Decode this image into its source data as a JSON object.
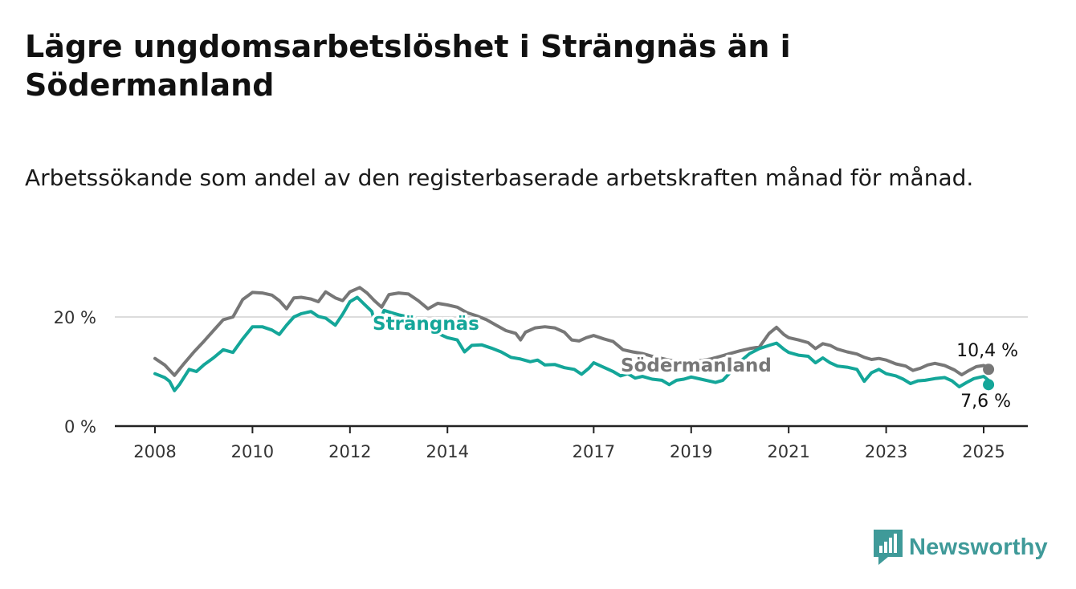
{
  "title": "Lägre ungdomsarbetslöshet i Strängnäs än i Södermanland",
  "subtitle": "Arbetssökande som andel av den registerbaserade arbetskraften månad för månad.",
  "brand": {
    "name": "Newsworthy",
    "icon": "newsworthy-chart-bubble-icon",
    "color": "#3f9a99"
  },
  "chart_data": {
    "type": "line",
    "x_unit": "year",
    "xlim": [
      2007.7,
      2025.9
    ],
    "ylim": [
      0,
      27
    ],
    "y_ticks": [
      {
        "value": 0,
        "label": "0 %"
      },
      {
        "value": 20,
        "label": "20 %"
      }
    ],
    "x_ticks": [
      {
        "value": 2008,
        "label": "2008"
      },
      {
        "value": 2010,
        "label": "2010"
      },
      {
        "value": 2012,
        "label": "2012"
      },
      {
        "value": 2014,
        "label": "2014"
      },
      {
        "value": 2017,
        "label": "2017"
      },
      {
        "value": 2019,
        "label": "2019"
      },
      {
        "value": 2021,
        "label": "2021"
      },
      {
        "value": 2023,
        "label": "2023"
      },
      {
        "value": 2025,
        "label": "2025"
      }
    ],
    "grid": "horizontal",
    "legend": "inline labels",
    "series": [
      {
        "name": "Södermanland",
        "color": "#777777",
        "end_label": "10,4 %",
        "points": [
          [
            2008.0,
            12.4
          ],
          [
            2008.2,
            11.2
          ],
          [
            2008.4,
            9.3
          ],
          [
            2008.6,
            11.5
          ],
          [
            2008.8,
            13.6
          ],
          [
            2009.0,
            15.5
          ],
          [
            2009.2,
            17.5
          ],
          [
            2009.4,
            19.5
          ],
          [
            2009.6,
            20.0
          ],
          [
            2009.8,
            23.2
          ],
          [
            2010.0,
            24.5
          ],
          [
            2010.2,
            24.4
          ],
          [
            2010.4,
            24.0
          ],
          [
            2010.55,
            23.0
          ],
          [
            2010.7,
            21.5
          ],
          [
            2010.85,
            23.5
          ],
          [
            2011.0,
            23.6
          ],
          [
            2011.2,
            23.3
          ],
          [
            2011.35,
            22.8
          ],
          [
            2011.5,
            24.6
          ],
          [
            2011.7,
            23.5
          ],
          [
            2011.85,
            23.0
          ],
          [
            2012.0,
            24.6
          ],
          [
            2012.2,
            25.4
          ],
          [
            2012.35,
            24.4
          ],
          [
            2012.5,
            23.0
          ],
          [
            2012.65,
            21.8
          ],
          [
            2012.8,
            24.1
          ],
          [
            2013.0,
            24.4
          ],
          [
            2013.2,
            24.2
          ],
          [
            2013.4,
            23.0
          ],
          [
            2013.6,
            21.5
          ],
          [
            2013.8,
            22.5
          ],
          [
            2014.0,
            22.2
          ],
          [
            2014.2,
            21.8
          ],
          [
            2014.4,
            20.8
          ],
          [
            2014.6,
            20.2
          ],
          [
            2014.8,
            19.5
          ],
          [
            2015.0,
            18.5
          ],
          [
            2015.2,
            17.5
          ],
          [
            2015.4,
            17.0
          ],
          [
            2015.5,
            15.8
          ],
          [
            2015.6,
            17.2
          ],
          [
            2015.8,
            18.0
          ],
          [
            2016.0,
            18.2
          ],
          [
            2016.2,
            18.0
          ],
          [
            2016.4,
            17.2
          ],
          [
            2016.55,
            15.8
          ],
          [
            2016.7,
            15.6
          ],
          [
            2016.85,
            16.2
          ],
          [
            2017.0,
            16.6
          ],
          [
            2017.2,
            16.0
          ],
          [
            2017.4,
            15.5
          ],
          [
            2017.6,
            14.0
          ],
          [
            2017.8,
            13.6
          ],
          [
            2018.0,
            13.3
          ],
          [
            2018.2,
            12.8
          ],
          [
            2018.4,
            12.4
          ],
          [
            2018.6,
            12.0
          ],
          [
            2018.8,
            12.0
          ],
          [
            2019.0,
            11.8
          ],
          [
            2019.2,
            12.0
          ],
          [
            2019.4,
            12.3
          ],
          [
            2019.6,
            12.8
          ],
          [
            2019.8,
            13.3
          ],
          [
            2020.0,
            13.8
          ],
          [
            2020.2,
            14.2
          ],
          [
            2020.4,
            14.5
          ],
          [
            2020.6,
            17.0
          ],
          [
            2020.75,
            18.1
          ],
          [
            2020.9,
            16.8
          ],
          [
            2021.0,
            16.2
          ],
          [
            2021.2,
            15.8
          ],
          [
            2021.4,
            15.3
          ],
          [
            2021.55,
            14.2
          ],
          [
            2021.7,
            15.1
          ],
          [
            2021.85,
            14.8
          ],
          [
            2022.0,
            14.1
          ],
          [
            2022.2,
            13.6
          ],
          [
            2022.4,
            13.2
          ],
          [
            2022.55,
            12.6
          ],
          [
            2022.7,
            12.2
          ],
          [
            2022.85,
            12.4
          ],
          [
            2023.0,
            12.1
          ],
          [
            2023.2,
            11.4
          ],
          [
            2023.4,
            11.0
          ],
          [
            2023.55,
            10.2
          ],
          [
            2023.7,
            10.6
          ],
          [
            2023.85,
            11.2
          ],
          [
            2024.0,
            11.5
          ],
          [
            2024.2,
            11.1
          ],
          [
            2024.4,
            10.3
          ],
          [
            2024.55,
            9.4
          ],
          [
            2024.7,
            10.2
          ],
          [
            2024.85,
            10.9
          ],
          [
            2025.0,
            11.1
          ],
          [
            2025.1,
            10.7
          ],
          [
            2025.1,
            10.4
          ]
        ]
      },
      {
        "name": "Strängnäs",
        "color": "#14a699",
        "end_label": "7,6 %",
        "points": [
          [
            2008.0,
            9.6
          ],
          [
            2008.2,
            8.9
          ],
          [
            2008.3,
            8.2
          ],
          [
            2008.4,
            6.5
          ],
          [
            2008.5,
            7.6
          ],
          [
            2008.7,
            10.4
          ],
          [
            2008.85,
            10.0
          ],
          [
            2009.0,
            11.2
          ],
          [
            2009.2,
            12.5
          ],
          [
            2009.4,
            14.0
          ],
          [
            2009.6,
            13.5
          ],
          [
            2009.8,
            16.0
          ],
          [
            2010.0,
            18.2
          ],
          [
            2010.2,
            18.2
          ],
          [
            2010.4,
            17.6
          ],
          [
            2010.55,
            16.8
          ],
          [
            2010.7,
            18.5
          ],
          [
            2010.85,
            20.0
          ],
          [
            2011.0,
            20.6
          ],
          [
            2011.2,
            21.0
          ],
          [
            2011.35,
            20.1
          ],
          [
            2011.5,
            19.8
          ],
          [
            2011.7,
            18.5
          ],
          [
            2011.85,
            20.5
          ],
          [
            2012.0,
            22.8
          ],
          [
            2012.15,
            23.6
          ],
          [
            2012.3,
            22.3
          ],
          [
            2012.45,
            21.0
          ],
          [
            2012.55,
            17.6
          ],
          [
            2012.7,
            21.2
          ],
          [
            2012.85,
            20.8
          ],
          [
            2013.0,
            20.4
          ],
          [
            2013.2,
            20.0
          ],
          [
            2013.4,
            19.5
          ],
          [
            2013.6,
            18.3
          ],
          [
            2013.8,
            17.0
          ],
          [
            2014.0,
            16.2
          ],
          [
            2014.2,
            15.8
          ],
          [
            2014.35,
            13.6
          ],
          [
            2014.5,
            14.8
          ],
          [
            2014.7,
            14.9
          ],
          [
            2014.9,
            14.3
          ],
          [
            2015.1,
            13.6
          ],
          [
            2015.3,
            12.6
          ],
          [
            2015.5,
            12.3
          ],
          [
            2015.7,
            11.8
          ],
          [
            2015.85,
            12.1
          ],
          [
            2016.0,
            11.2
          ],
          [
            2016.2,
            11.3
          ],
          [
            2016.4,
            10.7
          ],
          [
            2016.6,
            10.4
          ],
          [
            2016.75,
            9.5
          ],
          [
            2016.9,
            10.6
          ],
          [
            2017.0,
            11.6
          ],
          [
            2017.2,
            10.8
          ],
          [
            2017.4,
            10.0
          ],
          [
            2017.55,
            9.2
          ],
          [
            2017.7,
            9.6
          ],
          [
            2017.85,
            8.8
          ],
          [
            2018.0,
            9.1
          ],
          [
            2018.2,
            8.6
          ],
          [
            2018.4,
            8.4
          ],
          [
            2018.55,
            7.6
          ],
          [
            2018.7,
            8.4
          ],
          [
            2018.85,
            8.6
          ],
          [
            2019.0,
            9.0
          ],
          [
            2019.2,
            8.6
          ],
          [
            2019.35,
            8.3
          ],
          [
            2019.5,
            8.0
          ],
          [
            2019.65,
            8.4
          ],
          [
            2019.8,
            9.8
          ],
          [
            2020.0,
            11.8
          ],
          [
            2020.2,
            13.3
          ],
          [
            2020.4,
            14.2
          ],
          [
            2020.6,
            14.8
          ],
          [
            2020.75,
            15.2
          ],
          [
            2020.9,
            14.1
          ],
          [
            2021.0,
            13.5
          ],
          [
            2021.2,
            13.0
          ],
          [
            2021.4,
            12.8
          ],
          [
            2021.55,
            11.6
          ],
          [
            2021.7,
            12.5
          ],
          [
            2021.85,
            11.6
          ],
          [
            2022.0,
            11.0
          ],
          [
            2022.2,
            10.8
          ],
          [
            2022.4,
            10.4
          ],
          [
            2022.55,
            8.2
          ],
          [
            2022.7,
            9.8
          ],
          [
            2022.85,
            10.4
          ],
          [
            2023.0,
            9.6
          ],
          [
            2023.2,
            9.2
          ],
          [
            2023.35,
            8.6
          ],
          [
            2023.5,
            7.8
          ],
          [
            2023.65,
            8.3
          ],
          [
            2023.8,
            8.4
          ],
          [
            2024.0,
            8.7
          ],
          [
            2024.2,
            8.9
          ],
          [
            2024.35,
            8.3
          ],
          [
            2024.5,
            7.2
          ],
          [
            2024.65,
            8.0
          ],
          [
            2024.8,
            8.7
          ],
          [
            2025.0,
            9.1
          ],
          [
            2025.1,
            8.4
          ],
          [
            2025.1,
            7.6
          ]
        ]
      }
    ]
  }
}
